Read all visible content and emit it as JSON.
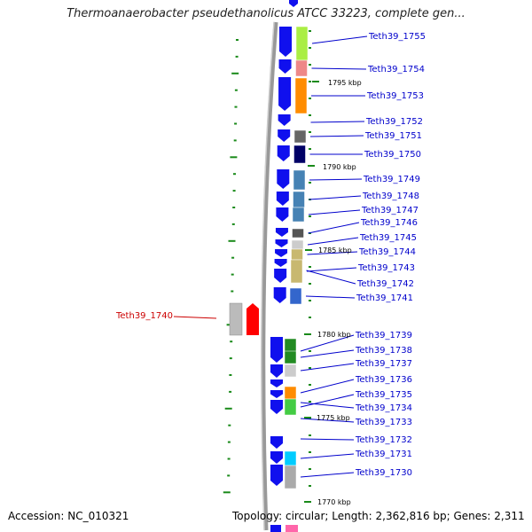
{
  "title": "Thermoanaerobacter pseudethanolicus ATCC 33223, complete gen...",
  "accession": "Accession: NC_010321",
  "topology": "Topology: circular; Length: 2,362,816 bp; Genes: 2,311",
  "kbp_markers": [
    "1795 kbp",
    "1790 kbp",
    "1785 kbp",
    "1780 kbp",
    "1775 kbp",
    "1770 kbp"
  ],
  "genes": [
    {
      "id": "Teth39_1755",
      "color": "#aaee44"
    },
    {
      "id": "Teth39_1754",
      "color": "#ee8888"
    },
    {
      "id": "Teth39_1753",
      "color": "#ff8c00"
    },
    {
      "id": "Teth39_1752",
      "color": "#ffffff"
    },
    {
      "id": "Teth39_1751",
      "color": "#666666"
    },
    {
      "id": "Teth39_1750",
      "color": "#000066"
    },
    {
      "id": "Teth39_1749",
      "color": "#4682b4"
    },
    {
      "id": "Teth39_1748",
      "color": "#4682b4"
    },
    {
      "id": "Teth39_1747",
      "color": "#4682b4"
    },
    {
      "id": "Teth39_1746",
      "color": "#555555"
    },
    {
      "id": "Teth39_1745",
      "color": "#cccccc"
    },
    {
      "id": "Teth39_1744",
      "color": "#c8b870"
    },
    {
      "id": "Teth39_1743",
      "color": "#c8b870"
    },
    {
      "id": "Teth39_1742",
      "color": "#3366cc"
    },
    {
      "id": "Teth39_1741",
      "color": "#3366cc"
    },
    {
      "id": "Teth39_1740",
      "color": "#ff0000"
    },
    {
      "id": "Teth39_1739",
      "color": "#228b22"
    },
    {
      "id": "Teth39_1738",
      "color": "#228b22"
    },
    {
      "id": "Teth39_1737",
      "color": "#cccccc"
    },
    {
      "id": "Teth39_1736",
      "color": "#ff8c00"
    },
    {
      "id": "Teth39_1735",
      "color": "#44cc44"
    },
    {
      "id": "Teth39_1734",
      "color": "#44cc44"
    },
    {
      "id": "Teth39_1733",
      "color": "#ffffff"
    },
    {
      "id": "Teth39_1732",
      "color": "#ffffff"
    },
    {
      "id": "Teth39_1731",
      "color": "#00ccff"
    },
    {
      "id": "Teth39_1730",
      "color": "#aaaaaa"
    }
  ]
}
